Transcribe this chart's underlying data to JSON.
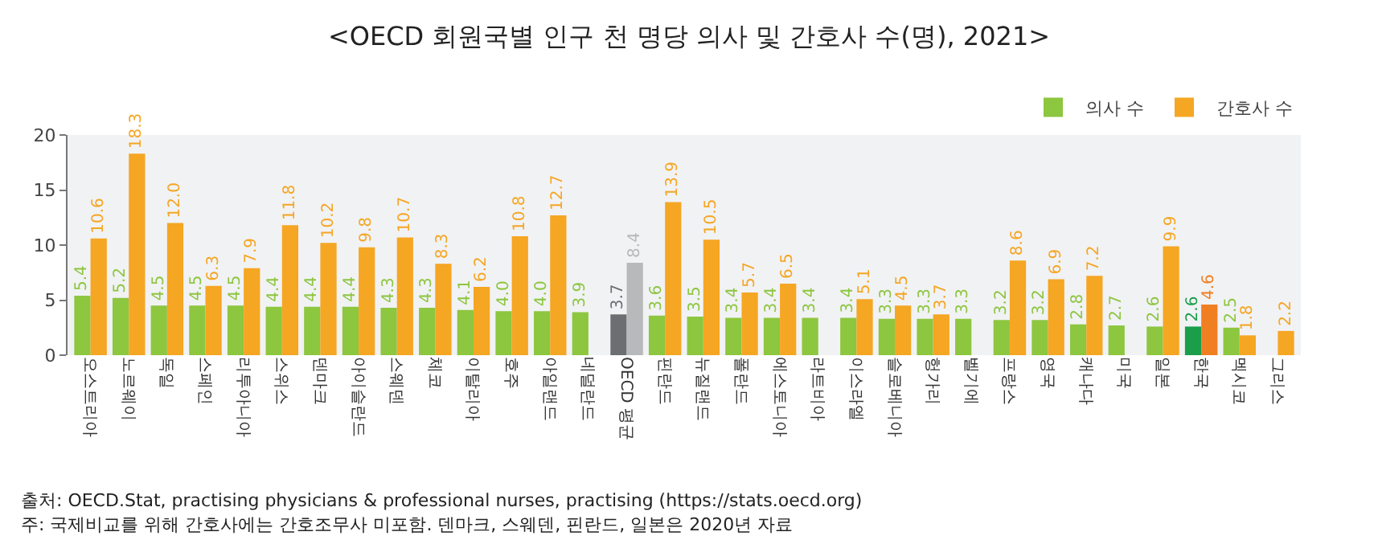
{
  "chart_data": {
    "type": "bar",
    "title": "<OECD 회원국별 인구 천 명당 의사 및 간호사 수(명), 2021>",
    "categories": [
      "오스트리아",
      "노르웨이",
      "독일",
      "스페인",
      "리투아니아",
      "스위스",
      "덴마크",
      "아이슬란드",
      "스웨덴",
      "체코",
      "이탈리아",
      "호주",
      "아일랜드",
      "네덜란드",
      "OECD 평균",
      "핀란드",
      "뉴질랜드",
      "폴란드",
      "에스토니아",
      "라트비아",
      "이스라엘",
      "슬로베니아",
      "헝가리",
      "벨기에",
      "프랑스",
      "영국",
      "캐나다",
      "미국",
      "일본",
      "한국",
      "멕시코",
      "그리스"
    ],
    "series": [
      {
        "name": "의사 수",
        "color": "#8dc63f",
        "colors": [
          "#8dc63f",
          "#8dc63f",
          "#8dc63f",
          "#8dc63f",
          "#8dc63f",
          "#8dc63f",
          "#8dc63f",
          "#8dc63f",
          "#8dc63f",
          "#8dc63f",
          "#8dc63f",
          "#8dc63f",
          "#8dc63f",
          "#8dc63f",
          "#6d6e71",
          "#8dc63f",
          "#8dc63f",
          "#8dc63f",
          "#8dc63f",
          "#8dc63f",
          "#8dc63f",
          "#8dc63f",
          "#8dc63f",
          "#8dc63f",
          "#8dc63f",
          "#8dc63f",
          "#8dc63f",
          "#8dc63f",
          "#8dc63f",
          "#1a9e4a",
          "#8dc63f",
          "#8dc63f"
        ],
        "values": [
          5.4,
          5.2,
          4.5,
          4.5,
          4.5,
          4.4,
          4.4,
          4.4,
          4.3,
          4.3,
          4.1,
          4.0,
          4.0,
          3.9,
          3.7,
          3.6,
          3.5,
          3.4,
          3.4,
          3.4,
          3.4,
          3.3,
          3.3,
          3.3,
          3.2,
          3.2,
          2.8,
          2.7,
          2.6,
          2.6,
          2.5,
          null
        ],
        "value_labels": [
          "5.4",
          "5.2",
          "4.5",
          "4.5",
          "4.5",
          "4.4",
          "4.4",
          "4.4",
          "4.3",
          "4.3",
          "4.1",
          "4.0",
          "4.0",
          "3.9",
          "3.7",
          "3.6",
          "3.5",
          "3.4",
          "3.4",
          "3.4",
          "3.4",
          "3.3",
          "3.3",
          "3.3",
          "3.2",
          "3.2",
          "2.8",
          "2.7",
          "2.6",
          "2.6",
          "2.5",
          null
        ]
      },
      {
        "name": "간호사 수",
        "color": "#f5a623",
        "colors": [
          "#f5a623",
          "#f5a623",
          "#f5a623",
          "#f5a623",
          "#f5a623",
          "#f5a623",
          "#f5a623",
          "#f5a623",
          "#f5a623",
          "#f5a623",
          "#f5a623",
          "#f5a623",
          "#f5a623",
          "#f5a623",
          "#b8b9bb",
          "#f5a623",
          "#f5a623",
          "#f5a623",
          "#f5a623",
          "#f5a623",
          "#f5a623",
          "#f5a623",
          "#f5a623",
          "#f5a623",
          "#f5a623",
          "#f5a623",
          "#f5a623",
          "#f5a623",
          "#f5a623",
          "#f07f22",
          "#f5a623",
          "#f5a623"
        ],
        "values": [
          10.6,
          18.3,
          12.0,
          6.3,
          7.9,
          11.8,
          10.2,
          9.8,
          10.7,
          8.3,
          6.2,
          10.8,
          12.7,
          null,
          8.4,
          13.9,
          10.5,
          5.7,
          6.5,
          null,
          5.1,
          4.5,
          3.7,
          null,
          8.6,
          6.9,
          7.2,
          null,
          9.9,
          4.6,
          1.8,
          2.2
        ],
        "value_labels": [
          "10.6",
          "18.3",
          "12.0",
          "6.3",
          "7.9",
          "11.8",
          "10.2",
          "9.8",
          "10.7",
          "8.3",
          "6.2",
          "10.8",
          "12.7",
          null,
          "8.4",
          "13.9",
          "10.5",
          "5.7",
          "6.5",
          null,
          "5.1",
          "4.5",
          "3.7",
          null,
          "8.6",
          "6.9",
          "7.2",
          null,
          "9.9",
          "4.6",
          "1.8",
          "2.2"
        ]
      }
    ],
    "ylim": [
      0,
      20
    ],
    "yticks": [
      0,
      5,
      10,
      15,
      20
    ],
    "grid": false,
    "legend": "top right",
    "annotations": [
      "출처: OECD.Stat, practising physicians & professional nurses, practising (https://stats.oecd.org)",
      "주: 국제비교를 위해 간호사에는 간호조무사 미포함. 덴마크, 스웨덴, 핀란드, 일본은 2020년 자료"
    ]
  }
}
